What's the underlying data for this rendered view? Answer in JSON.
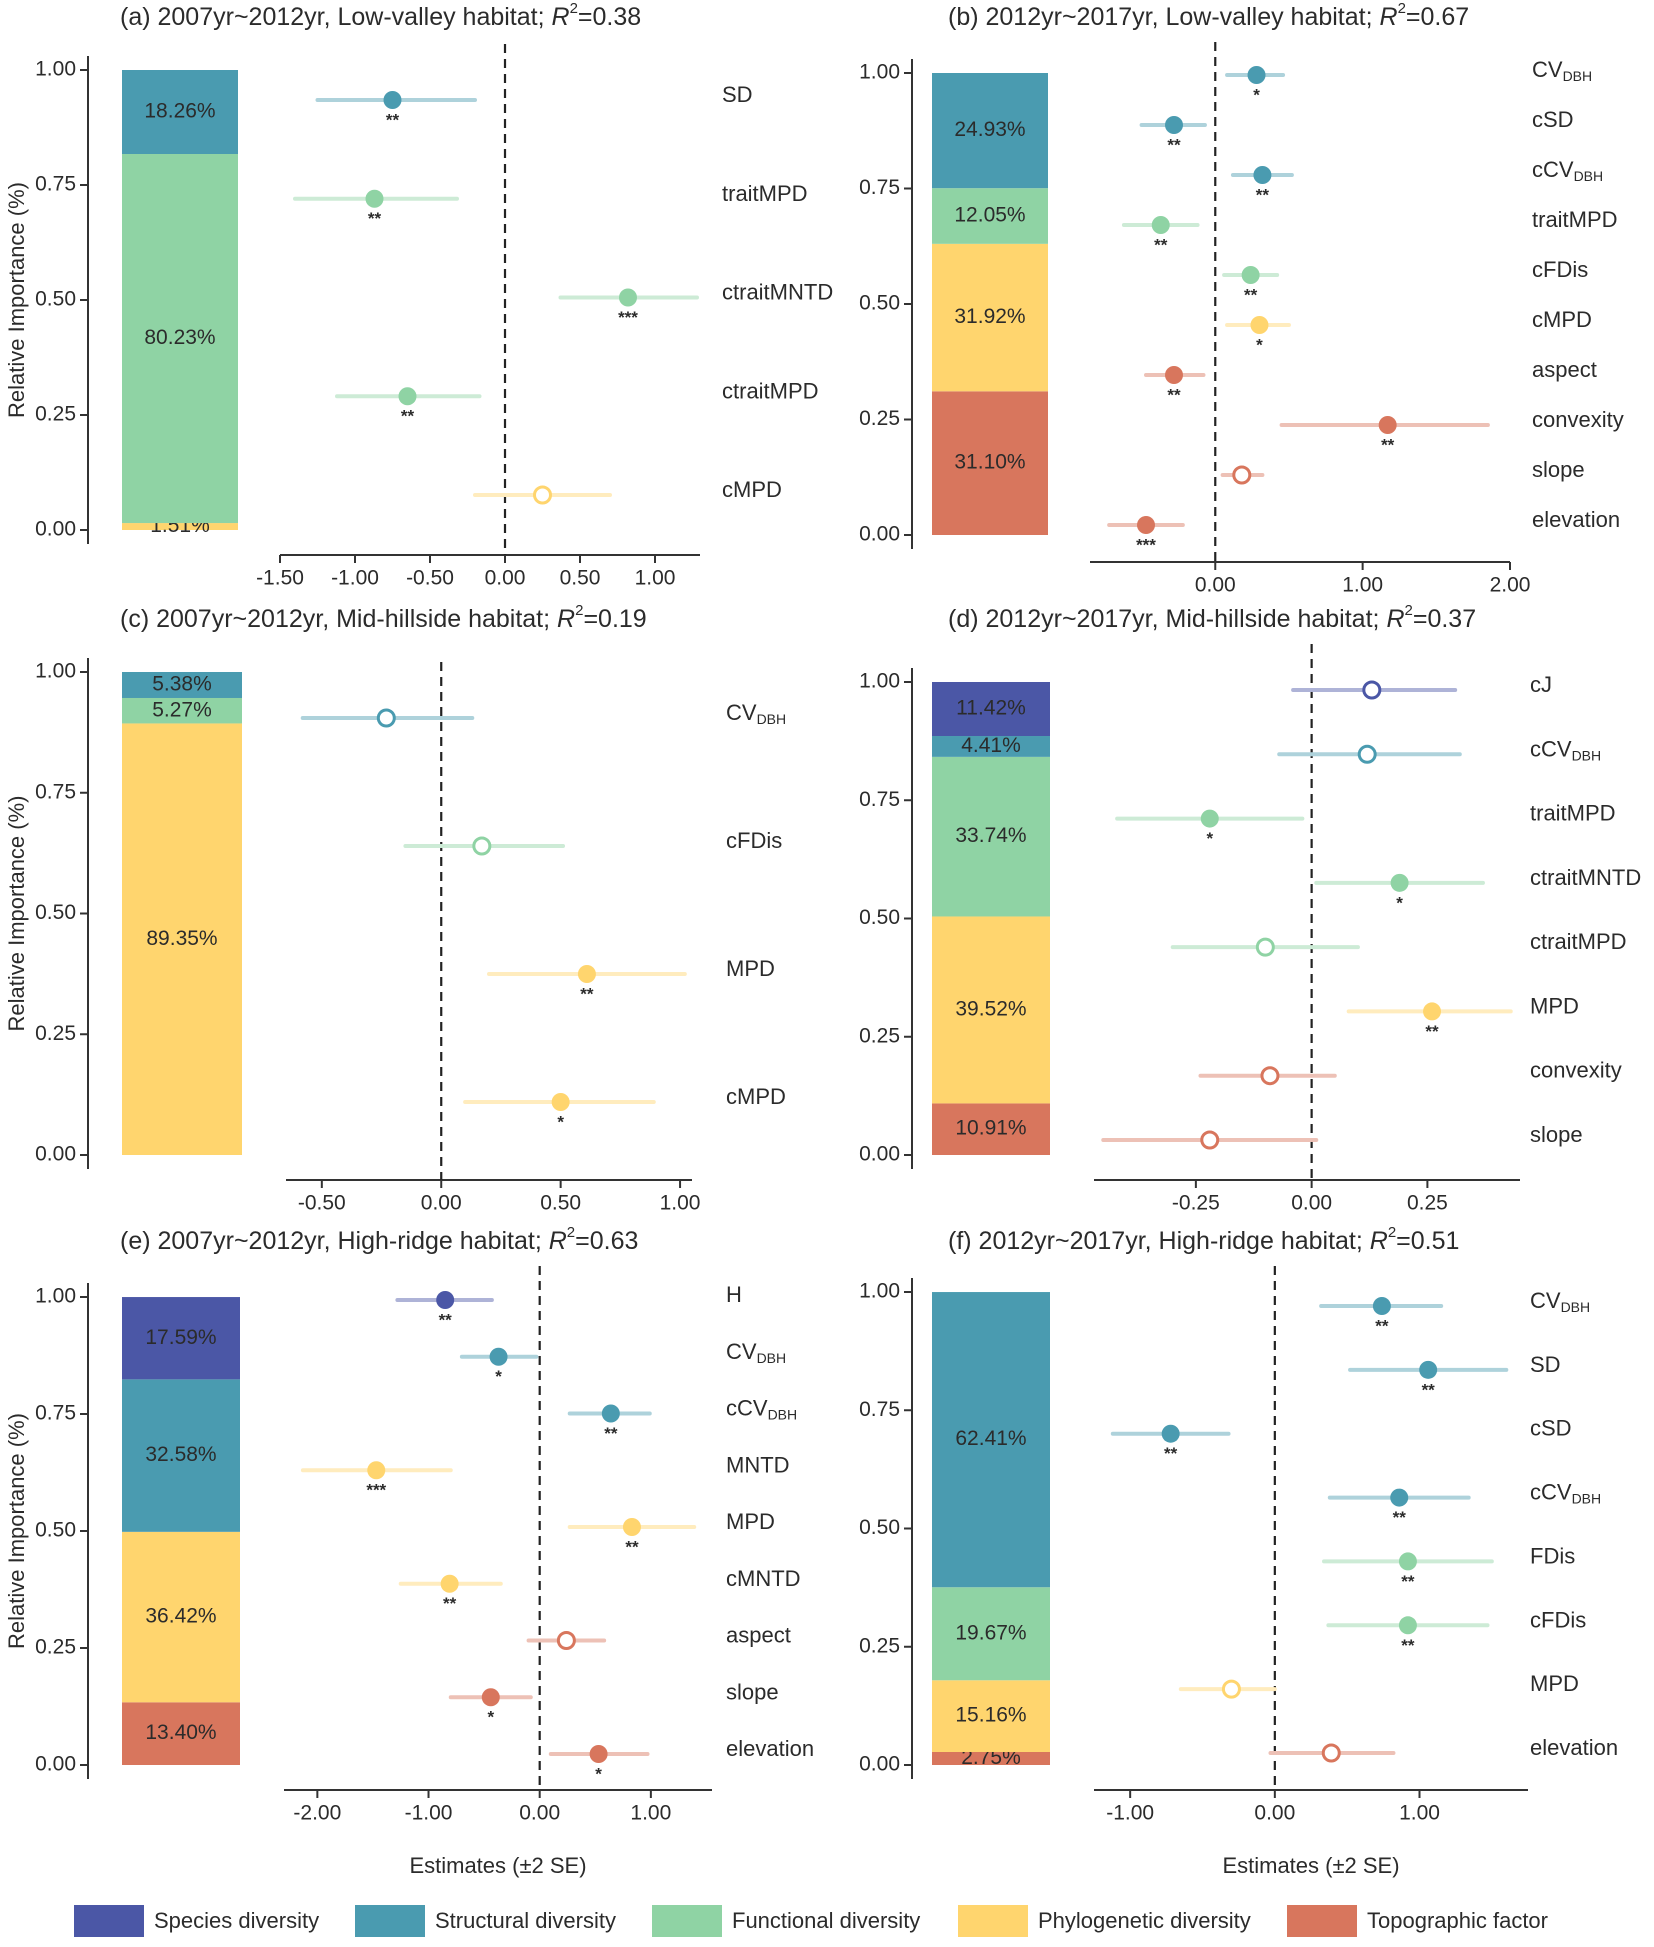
{
  "colors": {
    "species": "#4b57a6",
    "structural": "#4a9bb0",
    "functional": "#8fd3a4",
    "phylogenetic": "#ffd56e",
    "topographic": "#d8765d"
  },
  "shared": {
    "y_axis_label": "Relative Importance (%)",
    "x_axis_label": "Estimates (±2 SE)",
    "y_ticks": [
      "0.00",
      "0.25",
      "0.50",
      "0.75",
      "1.00"
    ]
  },
  "legend": [
    {
      "name": "Species diversity",
      "category": "species"
    },
    {
      "name": "Structural diversity",
      "category": "structural"
    },
    {
      "name": "Functional diversity",
      "category": "functional"
    },
    {
      "name": "Phylogenetic diversity",
      "category": "phylogenetic"
    },
    {
      "name": "Topographic factor",
      "category": "topographic"
    }
  ],
  "chart_data": [
    {
      "panel": "a",
      "type": "stacked-bar+forest",
      "title_prefix": "(a) 2007yr~2012yr, Low-valley habitat; ",
      "r2": "0.38",
      "stack": [
        {
          "category": "phylogenetic",
          "value": 1.51,
          "label": "1.51%"
        },
        {
          "category": "functional",
          "value": 80.23,
          "label": "80.23%"
        },
        {
          "category": "structural",
          "value": 18.26,
          "label": "18.26%"
        }
      ],
      "xlim": [
        -1.5,
        1.3
      ],
      "xticks": [
        -1.5,
        -1.0,
        -0.5,
        0.0,
        0.5,
        1.0
      ],
      "xtick_labels": [
        "-1.50",
        "-1.00",
        "-0.50",
        "0.00",
        "0.50",
        "1.00"
      ],
      "estimates": [
        {
          "name": "SD",
          "sub": "",
          "category": "structural",
          "est": -0.75,
          "lo": -1.25,
          "hi": -0.2,
          "sig": "**",
          "filled": true
        },
        {
          "name": "traitMPD",
          "sub": "",
          "category": "functional",
          "est": -0.87,
          "lo": -1.4,
          "hi": -0.32,
          "sig": "**",
          "filled": true
        },
        {
          "name": "ctraitMNTD",
          "sub": "",
          "category": "functional",
          "est": 0.82,
          "lo": 0.37,
          "hi": 1.28,
          "sig": "***",
          "filled": true
        },
        {
          "name": "ctraitMPD",
          "sub": "",
          "category": "functional",
          "est": -0.65,
          "lo": -1.12,
          "hi": -0.17,
          "sig": "**",
          "filled": true
        },
        {
          "name": "cMPD",
          "sub": "",
          "category": "phylogenetic",
          "est": 0.25,
          "lo": -0.2,
          "hi": 0.7,
          "sig": "",
          "filled": false
        }
      ]
    },
    {
      "panel": "b",
      "type": "stacked-bar+forest",
      "title_prefix": "(b) 2012yr~2017yr, Low-valley habitat; ",
      "r2": "0.67",
      "stack": [
        {
          "category": "topographic",
          "value": 31.1,
          "label": "31.10%"
        },
        {
          "category": "phylogenetic",
          "value": 31.92,
          "label": "31.92%"
        },
        {
          "category": "functional",
          "value": 12.05,
          "label": "12.05%"
        },
        {
          "category": "structural",
          "value": 24.93,
          "label": "24.93%"
        }
      ],
      "xlim": [
        -0.85,
        2.0
      ],
      "xticks": [
        0.0,
        1.0,
        2.0
      ],
      "xtick_labels": [
        "0.00",
        "1.00",
        "2.00"
      ],
      "estimates": [
        {
          "name": "CV",
          "sub": "DBH",
          "category": "structural",
          "est": 0.28,
          "lo": 0.08,
          "hi": 0.46,
          "sig": "*",
          "filled": true
        },
        {
          "name": "cSD",
          "sub": "",
          "category": "structural",
          "est": -0.28,
          "lo": -0.5,
          "hi": -0.07,
          "sig": "**",
          "filled": true
        },
        {
          "name": "cCV",
          "sub": "DBH",
          "category": "structural",
          "est": 0.32,
          "lo": 0.12,
          "hi": 0.52,
          "sig": "**",
          "filled": true
        },
        {
          "name": "traitMPD",
          "sub": "",
          "category": "functional",
          "est": -0.37,
          "lo": -0.62,
          "hi": -0.12,
          "sig": "**",
          "filled": true
        },
        {
          "name": "cFDis",
          "sub": "",
          "category": "functional",
          "est": 0.24,
          "lo": 0.06,
          "hi": 0.42,
          "sig": "**",
          "filled": true
        },
        {
          "name": "cMPD",
          "sub": "",
          "category": "phylogenetic",
          "est": 0.3,
          "lo": 0.08,
          "hi": 0.5,
          "sig": "*",
          "filled": true
        },
        {
          "name": "aspect",
          "sub": "",
          "category": "topographic",
          "est": -0.28,
          "lo": -0.47,
          "hi": -0.08,
          "sig": "**",
          "filled": true
        },
        {
          "name": "convexity",
          "sub": "",
          "category": "topographic",
          "est": 1.17,
          "lo": 0.45,
          "hi": 1.85,
          "sig": "**",
          "filled": true
        },
        {
          "name": "slope",
          "sub": "",
          "category": "topographic",
          "est": 0.18,
          "lo": 0.05,
          "hi": 0.32,
          "sig": "",
          "filled": false
        },
        {
          "name": "elevation",
          "sub": "",
          "category": "topographic",
          "est": -0.47,
          "lo": -0.72,
          "hi": -0.22,
          "sig": "***",
          "filled": true
        }
      ]
    },
    {
      "panel": "c",
      "type": "stacked-bar+forest",
      "title_prefix": "(c) 2007yr~2012yr, Mid-hillside habitat; ",
      "r2": "0.19",
      "stack": [
        {
          "category": "phylogenetic",
          "value": 89.35,
          "label": "89.35%"
        },
        {
          "category": "functional",
          "value": 5.27,
          "label": "5.27%"
        },
        {
          "category": "structural",
          "value": 5.38,
          "label": "5.38%"
        }
      ],
      "xlim": [
        -0.65,
        1.05
      ],
      "xticks": [
        -0.5,
        0.0,
        0.5,
        1.0
      ],
      "xtick_labels": [
        "-0.50",
        "0.00",
        "0.50",
        "1.00"
      ],
      "estimates": [
        {
          "name": "CV",
          "sub": "DBH",
          "category": "structural",
          "est": -0.23,
          "lo": -0.58,
          "hi": 0.13,
          "sig": "",
          "filled": false
        },
        {
          "name": "cFDis",
          "sub": "",
          "category": "functional",
          "est": 0.17,
          "lo": -0.15,
          "hi": 0.51,
          "sig": "",
          "filled": false
        },
        {
          "name": "MPD",
          "sub": "",
          "category": "phylogenetic",
          "est": 0.61,
          "lo": 0.2,
          "hi": 1.02,
          "sig": "**",
          "filled": true
        },
        {
          "name": "cMPD",
          "sub": "",
          "category": "phylogenetic",
          "est": 0.5,
          "lo": 0.1,
          "hi": 0.89,
          "sig": "*",
          "filled": true
        }
      ]
    },
    {
      "panel": "d",
      "type": "stacked-bar+forest",
      "title_prefix": "(d) 2012yr~2017yr, Mid-hillside habitat; ",
      "r2": "0.37",
      "stack": [
        {
          "category": "topographic",
          "value": 10.91,
          "label": "10.91%"
        },
        {
          "category": "phylogenetic",
          "value": 39.52,
          "label": "39.52%"
        },
        {
          "category": "functional",
          "value": 33.74,
          "label": "33.74%"
        },
        {
          "category": "structural",
          "value": 4.41,
          "label": "4.41%"
        },
        {
          "category": "species",
          "value": 11.42,
          "label": "11.42%"
        }
      ],
      "xlim": [
        -0.47,
        0.45
      ],
      "xticks": [
        -0.25,
        0.0,
        0.25
      ],
      "xtick_labels": [
        "-0.25",
        "0.00",
        "0.25"
      ],
      "estimates": [
        {
          "name": "cJ",
          "sub": "",
          "category": "species",
          "est": 0.13,
          "lo": -0.04,
          "hi": 0.31,
          "sig": "",
          "filled": false
        },
        {
          "name": "cCV",
          "sub": "DBH",
          "category": "structural",
          "est": 0.12,
          "lo": -0.07,
          "hi": 0.32,
          "sig": "",
          "filled": false
        },
        {
          "name": "traitMPD",
          "sub": "",
          "category": "functional",
          "est": -0.22,
          "lo": -0.42,
          "hi": -0.02,
          "sig": "*",
          "filled": true
        },
        {
          "name": "ctraitMNTD",
          "sub": "",
          "category": "functional",
          "est": 0.19,
          "lo": 0.01,
          "hi": 0.37,
          "sig": "*",
          "filled": true
        },
        {
          "name": "ctraitMPD",
          "sub": "",
          "category": "functional",
          "est": -0.1,
          "lo": -0.3,
          "hi": 0.1,
          "sig": "",
          "filled": false
        },
        {
          "name": "MPD",
          "sub": "",
          "category": "phylogenetic",
          "est": 0.26,
          "lo": 0.08,
          "hi": 0.43,
          "sig": "**",
          "filled": true
        },
        {
          "name": "convexity",
          "sub": "",
          "category": "topographic",
          "est": -0.09,
          "lo": -0.24,
          "hi": 0.05,
          "sig": "",
          "filled": false
        },
        {
          "name": "slope",
          "sub": "",
          "category": "topographic",
          "est": -0.22,
          "lo": -0.45,
          "hi": 0.01,
          "sig": "",
          "filled": false
        }
      ]
    },
    {
      "panel": "e",
      "type": "stacked-bar+forest",
      "title_prefix": "(e) 2007yr~2012yr, High-ridge habitat; ",
      "r2": "0.63",
      "stack": [
        {
          "category": "topographic",
          "value": 13.4,
          "label": "13.40%"
        },
        {
          "category": "phylogenetic",
          "value": 36.42,
          "label": "36.42%"
        },
        {
          "category": "structural",
          "value": 32.58,
          "label": "32.58%"
        },
        {
          "category": "species",
          "value": 17.59,
          "label": "17.59%"
        }
      ],
      "xlim": [
        -2.3,
        1.55
      ],
      "xticks": [
        -2.0,
        -1.0,
        0.0,
        1.0
      ],
      "xtick_labels": [
        "-2.00",
        "-1.00",
        "0.00",
        "1.00"
      ],
      "estimates": [
        {
          "name": "H",
          "sub": "",
          "category": "species",
          "est": -0.85,
          "lo": -1.28,
          "hi": -0.43,
          "sig": "**",
          "filled": true
        },
        {
          "name": "CV",
          "sub": "DBH",
          "category": "structural",
          "est": -0.37,
          "lo": -0.7,
          "hi": -0.03,
          "sig": "*",
          "filled": true
        },
        {
          "name": "cCV",
          "sub": "DBH",
          "category": "structural",
          "est": 0.64,
          "lo": 0.27,
          "hi": 0.99,
          "sig": "**",
          "filled": true
        },
        {
          "name": "MNTD",
          "sub": "",
          "category": "phylogenetic",
          "est": -1.47,
          "lo": -2.13,
          "hi": -0.8,
          "sig": "***",
          "filled": true
        },
        {
          "name": "MPD",
          "sub": "",
          "category": "phylogenetic",
          "est": 0.83,
          "lo": 0.27,
          "hi": 1.39,
          "sig": "**",
          "filled": true
        },
        {
          "name": "cMNTD",
          "sub": "",
          "category": "phylogenetic",
          "est": -0.81,
          "lo": -1.25,
          "hi": -0.35,
          "sig": "**",
          "filled": true
        },
        {
          "name": "aspect",
          "sub": "",
          "category": "topographic",
          "est": 0.24,
          "lo": -0.1,
          "hi": 0.58,
          "sig": "",
          "filled": false
        },
        {
          "name": "slope",
          "sub": "",
          "category": "topographic",
          "est": -0.44,
          "lo": -0.8,
          "hi": -0.08,
          "sig": "*",
          "filled": true
        },
        {
          "name": "elevation",
          "sub": "",
          "category": "topographic",
          "est": 0.53,
          "lo": 0.1,
          "hi": 0.97,
          "sig": "*",
          "filled": true
        }
      ]
    },
    {
      "panel": "f",
      "type": "stacked-bar+forest",
      "title_prefix": "(f) 2012yr~2017yr, High-ridge habitat; ",
      "r2": "0.51",
      "stack": [
        {
          "category": "topographic",
          "value": 2.75,
          "label": "2.75%"
        },
        {
          "category": "phylogenetic",
          "value": 15.16,
          "label": "15.16%"
        },
        {
          "category": "functional",
          "value": 19.67,
          "label": "19.67%"
        },
        {
          "category": "structural",
          "value": 62.41,
          "label": "62.41%"
        }
      ],
      "xlim": [
        -1.25,
        1.75
      ],
      "xticks": [
        -1.0,
        0.0,
        1.0
      ],
      "xtick_labels": [
        "-1.00",
        "0.00",
        "1.00"
      ],
      "estimates": [
        {
          "name": "CV",
          "sub": "DBH",
          "category": "structural",
          "est": 0.74,
          "lo": 0.32,
          "hi": 1.15,
          "sig": "**",
          "filled": true
        },
        {
          "name": "SD",
          "sub": "",
          "category": "structural",
          "est": 1.06,
          "lo": 0.52,
          "hi": 1.6,
          "sig": "**",
          "filled": true
        },
        {
          "name": "cSD",
          "sub": "",
          "category": "structural",
          "est": -0.72,
          "lo": -1.12,
          "hi": -0.32,
          "sig": "**",
          "filled": true
        },
        {
          "name": "cCV",
          "sub": "DBH",
          "category": "structural",
          "est": 0.86,
          "lo": 0.38,
          "hi": 1.34,
          "sig": "**",
          "filled": true
        },
        {
          "name": "FDis",
          "sub": "",
          "category": "functional",
          "est": 0.92,
          "lo": 0.34,
          "hi": 1.5,
          "sig": "**",
          "filled": true
        },
        {
          "name": "cFDis",
          "sub": "",
          "category": "functional",
          "est": 0.92,
          "lo": 0.37,
          "hi": 1.47,
          "sig": "**",
          "filled": true
        },
        {
          "name": "MPD",
          "sub": "",
          "category": "phylogenetic",
          "est": -0.3,
          "lo": -0.65,
          "hi": 0.0,
          "sig": "",
          "filled": false
        },
        {
          "name": "elevation",
          "sub": "",
          "category": "topographic",
          "est": 0.39,
          "lo": -0.03,
          "hi": 0.82,
          "sig": "",
          "filled": false
        }
      ]
    }
  ]
}
